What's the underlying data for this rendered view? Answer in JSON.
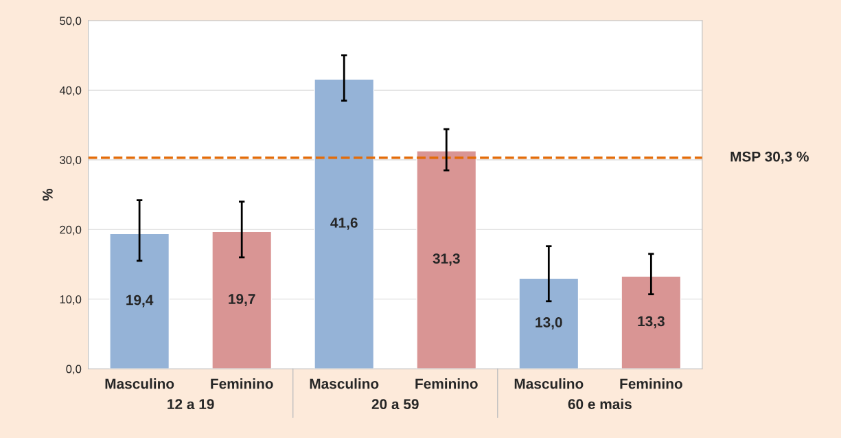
{
  "chart_data": {
    "type": "bar",
    "ylabel": "%",
    "categories": [
      "Masculino",
      "Feminino",
      "Masculino",
      "Feminino",
      "Masculino",
      "Feminino"
    ],
    "values": [
      19.4,
      19.7,
      41.6,
      31.3,
      13.0,
      13.3
    ],
    "colors": [
      "#95b3d7",
      "#d99594",
      "#95b3d7",
      "#d99594",
      "#95b3d7",
      "#d99594"
    ],
    "value_labels": [
      "19,4",
      "19,7",
      "41,6",
      "31,3",
      "13,0",
      "13,3"
    ],
    "errors": [
      [
        15.5,
        24.2
      ],
      [
        16.0,
        24.0
      ],
      [
        38.5,
        45.0
      ],
      [
        28.5,
        34.4
      ],
      [
        9.7,
        17.6
      ],
      [
        10.7,
        16.5
      ]
    ],
    "ylim": [
      0,
      50
    ],
    "yticks": [
      {
        "value": 0,
        "label": "0,0"
      },
      {
        "value": 10,
        "label": "10,0"
      },
      {
        "value": 20,
        "label": "20,0"
      },
      {
        "value": 30,
        "label": "30,0"
      },
      {
        "value": 40,
        "label": "40,0"
      },
      {
        "value": 50,
        "label": "50,0"
      }
    ],
    "ref_lines": [
      {
        "axis": "y",
        "value": 30.3,
        "label": "MSP 30,3 %",
        "color": "#e36c09",
        "line_style": "dashed"
      }
    ],
    "annotations": [
      "12 a 19",
      "20 a 59",
      "60 e mais"
    ],
    "grid": "y",
    "legend": false
  }
}
